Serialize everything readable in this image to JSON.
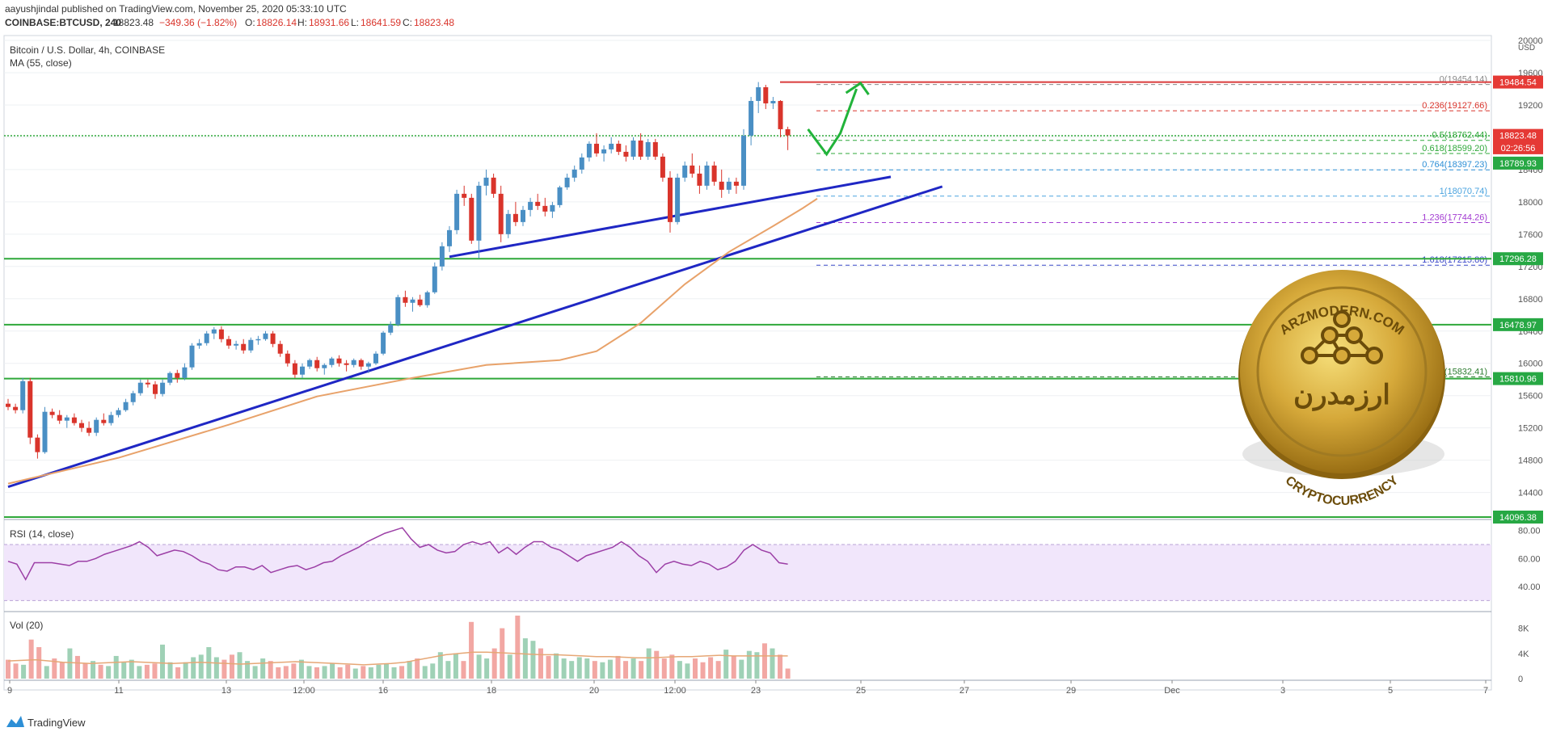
{
  "header": {
    "line1": "aayushjindal published on TradingView.com, November 25, 2020 05:33:10 UTC",
    "symbol": "COINBASE:BTCUSD, 240",
    "last": "18823.48",
    "change": "−349.36 (−1.82%)",
    "o_label": "O:",
    "o": "18826.14",
    "h_label": "H:",
    "h": "18931.66",
    "l_label": "L:",
    "l": "18641.59",
    "c_label": "C:",
    "c": "18823.48"
  },
  "chart_title": "Bitcoin / U.S. Dollar, 4h, COINBASE",
  "ma_label": "MA (55, close)",
  "currency": "USD",
  "rsi_label": "RSI (14, close)",
  "vol_label": "Vol (20)",
  "brand": "TradingView",
  "coin": {
    "top_text": "ARZMODERN.COM",
    "center_text": "ارزمدرن",
    "bottom_text": "CRYPTOCURRENCY"
  },
  "colors": {
    "up": "#4a8fc4",
    "down": "#d9342b",
    "trendline": "#1f27c4",
    "ma": "#e8a26a",
    "support": "#2fa83a",
    "resistance": "#d93b3b",
    "rsi_line": "#9c3fa6",
    "arrow": "#21b33a"
  },
  "chart_data": {
    "type": "candlestick",
    "series_name": "BTCUSD",
    "ylim": [
      14096,
      20000
    ],
    "price_ticks": [
      "20000",
      "19600",
      "19200",
      "18800",
      "18400",
      "18000",
      "17600",
      "17200",
      "16800",
      "16400",
      "16000",
      "15600",
      "15200",
      "14800",
      "14400"
    ],
    "x_ticks": [
      "9",
      "11",
      "13",
      "12:00",
      "16",
      "18",
      "20",
      "12:00",
      "23",
      "25",
      "27",
      "29",
      "Dec",
      "3",
      "5",
      "7"
    ],
    "candles": [
      [
        15500,
        15560,
        15420,
        15460
      ],
      [
        15460,
        15500,
        15380,
        15420
      ],
      [
        15420,
        15820,
        15380,
        15780
      ],
      [
        15780,
        15820,
        15000,
        15080
      ],
      [
        15080,
        15120,
        14820,
        14900
      ],
      [
        14900,
        15460,
        14880,
        15400
      ],
      [
        15400,
        15440,
        15320,
        15360
      ],
      [
        15360,
        15420,
        15250,
        15290
      ],
      [
        15290,
        15360,
        15200,
        15330
      ],
      [
        15330,
        15380,
        15230,
        15260
      ],
      [
        15260,
        15300,
        15150,
        15200
      ],
      [
        15200,
        15280,
        15100,
        15140
      ],
      [
        15140,
        15330,
        15100,
        15300
      ],
      [
        15300,
        15380,
        15230,
        15260
      ],
      [
        15260,
        15400,
        15230,
        15360
      ],
      [
        15360,
        15450,
        15330,
        15420
      ],
      [
        15420,
        15560,
        15400,
        15520
      ],
      [
        15520,
        15660,
        15480,
        15630
      ],
      [
        15630,
        15800,
        15600,
        15760
      ],
      [
        15760,
        15800,
        15700,
        15740
      ],
      [
        15740,
        15780,
        15560,
        15620
      ],
      [
        15620,
        15800,
        15590,
        15760
      ],
      [
        15760,
        15900,
        15730,
        15880
      ],
      [
        15880,
        15920,
        15760,
        15820
      ],
      [
        15820,
        16000,
        15790,
        15950
      ],
      [
        15950,
        16250,
        15920,
        16220
      ],
      [
        16220,
        16300,
        16180,
        16250
      ],
      [
        16250,
        16400,
        16220,
        16370
      ],
      [
        16370,
        16450,
        16300,
        16420
      ],
      [
        16420,
        16460,
        16260,
        16300
      ],
      [
        16300,
        16340,
        16180,
        16220
      ],
      [
        16220,
        16280,
        16170,
        16240
      ],
      [
        16240,
        16300,
        16120,
        16160
      ],
      [
        16160,
        16320,
        16130,
        16290
      ],
      [
        16290,
        16340,
        16230,
        16300
      ],
      [
        16300,
        16400,
        16280,
        16370
      ],
      [
        16370,
        16400,
        16200,
        16240
      ],
      [
        16240,
        16280,
        16080,
        16120
      ],
      [
        16120,
        16160,
        15960,
        16000
      ],
      [
        16000,
        16040,
        15820,
        15860
      ],
      [
        15860,
        16000,
        15820,
        15960
      ],
      [
        15960,
        16060,
        15930,
        16040
      ],
      [
        16040,
        16080,
        15900,
        15940
      ],
      [
        15940,
        16000,
        15860,
        15980
      ],
      [
        15980,
        16080,
        15950,
        16060
      ],
      [
        16060,
        16100,
        15960,
        16000
      ],
      [
        16000,
        16040,
        15900,
        15980
      ],
      [
        15980,
        16060,
        15950,
        16040
      ],
      [
        16040,
        16060,
        15920,
        15960
      ],
      [
        15960,
        16020,
        15880,
        16000
      ],
      [
        16000,
        16150,
        15980,
        16120
      ],
      [
        16120,
        16400,
        16100,
        16380
      ],
      [
        16380,
        16520,
        16350,
        16480
      ],
      [
        16480,
        16850,
        16460,
        16820
      ],
      [
        16820,
        16900,
        16700,
        16750
      ],
      [
        16750,
        16820,
        16640,
        16790
      ],
      [
        16790,
        16850,
        16700,
        16720
      ],
      [
        16720,
        16900,
        16690,
        16880
      ],
      [
        16880,
        17250,
        16860,
        17200
      ],
      [
        17200,
        17500,
        17150,
        17450
      ],
      [
        17450,
        17700,
        17380,
        17650
      ],
      [
        17650,
        18150,
        17600,
        18100
      ],
      [
        18100,
        18200,
        17950,
        18050
      ],
      [
        18050,
        18100,
        17480,
        17520
      ],
      [
        17520,
        18250,
        17300,
        18200
      ],
      [
        18200,
        18400,
        18080,
        18300
      ],
      [
        18300,
        18350,
        18050,
        18100
      ],
      [
        18100,
        18200,
        17500,
        17600
      ],
      [
        17600,
        17900,
        17550,
        17850
      ],
      [
        17850,
        18000,
        17700,
        17750
      ],
      [
        17750,
        17950,
        17700,
        17900
      ],
      [
        17900,
        18050,
        17820,
        18000
      ],
      [
        18000,
        18100,
        17900,
        17950
      ],
      [
        17950,
        18050,
        17820,
        17880
      ],
      [
        17880,
        18000,
        17800,
        17960
      ],
      [
        17960,
        18200,
        17930,
        18180
      ],
      [
        18180,
        18350,
        18150,
        18300
      ],
      [
        18300,
        18450,
        18250,
        18400
      ],
      [
        18400,
        18600,
        18350,
        18550
      ],
      [
        18550,
        18750,
        18500,
        18720
      ],
      [
        18720,
        18850,
        18560,
        18600
      ],
      [
        18600,
        18700,
        18500,
        18650
      ],
      [
        18650,
        18800,
        18600,
        18720
      ],
      [
        18720,
        18760,
        18580,
        18620
      ],
      [
        18620,
        18700,
        18500,
        18560
      ],
      [
        18560,
        18800,
        18520,
        18760
      ],
      [
        18760,
        18850,
        18520,
        18560
      ],
      [
        18560,
        18780,
        18520,
        18740
      ],
      [
        18740,
        18780,
        18520,
        18560
      ],
      [
        18560,
        18600,
        18250,
        18300
      ],
      [
        18300,
        18380,
        17620,
        17750
      ],
      [
        17750,
        18350,
        17720,
        18300
      ],
      [
        18300,
        18500,
        18250,
        18450
      ],
      [
        18450,
        18600,
        18300,
        18350
      ],
      [
        18350,
        18450,
        18100,
        18200
      ],
      [
        18200,
        18500,
        18150,
        18450
      ],
      [
        18450,
        18500,
        18200,
        18250
      ],
      [
        18250,
        18400,
        18050,
        18150
      ],
      [
        18150,
        18300,
        18100,
        18250
      ],
      [
        18250,
        18300,
        18100,
        18200
      ],
      [
        18200,
        18900,
        18150,
        18820
      ],
      [
        18820,
        19300,
        18700,
        19250
      ],
      [
        19250,
        19484,
        19100,
        19420
      ],
      [
        19420,
        19450,
        19150,
        19220
      ],
      [
        19220,
        19300,
        19150,
        19250
      ],
      [
        19250,
        19260,
        18800,
        18900
      ],
      [
        18900,
        18931,
        18641,
        18823
      ]
    ],
    "ma55": [
      [
        0,
        14510
      ],
      [
        15,
        14830
      ],
      [
        30,
        15240
      ],
      [
        42,
        15590
      ],
      [
        55,
        15820
      ],
      [
        65,
        15980
      ],
      [
        75,
        16040
      ],
      [
        80,
        16150
      ],
      [
        86,
        16500
      ],
      [
        92,
        16980
      ],
      [
        98,
        17380
      ],
      [
        104,
        17700
      ],
      [
        108,
        17920
      ],
      [
        110,
        18040
      ]
    ],
    "trendlines": [
      {
        "from": [
          0,
          14470
        ],
        "to": [
          127,
          18190
        ]
      },
      {
        "from": [
          60,
          17320
        ],
        "to": [
          120,
          18310
        ]
      }
    ],
    "horizontal_levels": [
      {
        "price": 19484,
        "color": "resistance",
        "label": "19484.54"
      },
      {
        "price": 18819,
        "color": "support",
        "dotted": true,
        "label": "18823.48"
      },
      {
        "price": 17296,
        "color": "support",
        "label": "17296.28"
      },
      {
        "price": 16479,
        "color": "support",
        "label": "16478.97"
      },
      {
        "price": 15811,
        "color": "support",
        "label": "15810.96"
      },
      {
        "price": 14096,
        "color": "support",
        "label": "14096.38"
      }
    ],
    "fib_levels": [
      {
        "label": "0(19454.14)",
        "price": 19454,
        "color": "#8a8a8a"
      },
      {
        "label": "0.236(19127.66)",
        "price": 19128,
        "color": "#d9342b"
      },
      {
        "label": "0.5(18762.44)",
        "price": 18762,
        "color": "#2fa83a"
      },
      {
        "label": "0.618(18599.20)",
        "price": 18599,
        "color": "#2fa83a"
      },
      {
        "label": "0.764(18397.23)",
        "price": 18397,
        "color": "#2d8fd6"
      },
      {
        "label": "1(18070.74)",
        "price": 18071,
        "color": "#4aa3df"
      },
      {
        "label": "1.236(17744.26)",
        "price": 17744,
        "color": "#a23bd1"
      },
      {
        "label": "1.618(17215.80)",
        "price": 17216,
        "color": "#3a48c9"
      },
      {
        "label": "2.618(15832.41)",
        "price": 15832,
        "color": "#2e7d32"
      }
    ],
    "axis_badges": [
      {
        "text": "19484.54",
        "price": 19484,
        "bg": "#e53935"
      },
      {
        "text": "18823.48",
        "price": 18823,
        "bg": "#e53935"
      },
      {
        "text": "02:26:56",
        "price": 18670,
        "bg": "#e53935"
      },
      {
        "text": "18789.93",
        "price": 18480,
        "bg": "#27a844"
      },
      {
        "text": "17296.28",
        "price": 17296,
        "bg": "#27a844"
      },
      {
        "text": "16478.97",
        "price": 16479,
        "bg": "#27a844"
      },
      {
        "text": "15810.96",
        "price": 15811,
        "bg": "#27a844"
      },
      {
        "text": "14096.38",
        "price": 14096,
        "bg": "#27a844"
      }
    ],
    "rsi": {
      "ylim": [
        25,
        85
      ],
      "ticks": [
        "80.00",
        "60.00",
        "40.00"
      ],
      "band": [
        30,
        70
      ],
      "values": [
        58,
        56,
        45,
        57,
        57,
        57,
        56,
        55,
        58,
        58,
        60,
        63,
        65,
        67,
        69,
        72,
        68,
        62,
        64,
        66,
        65,
        62,
        58,
        56,
        52,
        51,
        54,
        54,
        52,
        55,
        50,
        52,
        54,
        55,
        52,
        54,
        57,
        58,
        62,
        65,
        68,
        72,
        75,
        78,
        80,
        82,
        74,
        68,
        70,
        66,
        64,
        65,
        70,
        72,
        70,
        72,
        64,
        68,
        63,
        68,
        72,
        72,
        68,
        66,
        62,
        58,
        62,
        64,
        66,
        68,
        72,
        68,
        62,
        58,
        50,
        56,
        58,
        56,
        55,
        58,
        56,
        52,
        54,
        58,
        66,
        70,
        66,
        64,
        57,
        56
      ]
    },
    "volume": {
      "ylim": [
        0,
        10000
      ],
      "ticks": [
        "8K",
        "4K",
        "0"
      ],
      "values": [
        3000,
        2400,
        2200,
        6200,
        5000,
        2000,
        3200,
        2600,
        4800,
        3600,
        2400,
        2800,
        2200,
        2000,
        3600,
        2600,
        3000,
        2000,
        2200,
        2400,
        5400,
        2600,
        1800,
        2600,
        3400,
        3800,
        5000,
        3400,
        3000,
        3800,
        4200,
        2800,
        2000,
        3200,
        2800,
        1800,
        2000,
        2400,
        3000,
        2000,
        1800,
        2000,
        2400,
        1800,
        2200,
        1600,
        2000,
        1800,
        2200,
        2400,
        1800,
        2000,
        2800,
        3200,
        2000,
        2400,
        4200,
        2800,
        4000,
        2800,
        9000,
        3800,
        3200,
        4800,
        8000,
        3800,
        10000,
        6400,
        6000,
        4800,
        3600,
        4000,
        3200,
        2800,
        3400,
        3200,
        2800,
        2600,
        3000,
        3600,
        2800,
        3200,
        2800,
        4800,
        4400,
        3200,
        3800,
        2800,
        2400,
        3200,
        2600,
        3400,
        2800,
        4600,
        3600,
        3000,
        4400,
        4200,
        5600,
        4800,
        3800,
        1600
      ],
      "ma20": [
        2800,
        2900,
        3000,
        2800,
        2600,
        2500,
        2400,
        2500,
        2600,
        2700,
        2600,
        2500,
        2400,
        2500,
        2600,
        2500,
        2400,
        2300,
        2400,
        2500,
        2600,
        2700,
        2600,
        2500,
        2400,
        2300,
        2200,
        2300,
        2400,
        2600,
        3000,
        3400,
        3800,
        4000,
        4200,
        4200,
        4100,
        4000,
        3900,
        3800,
        3800,
        3700,
        3600,
        3500,
        3500,
        3400,
        3300,
        3300,
        3400,
        3500,
        3500,
        3600,
        3700,
        3600,
        3600,
        3600,
        3600,
        3600
      ]
    }
  }
}
